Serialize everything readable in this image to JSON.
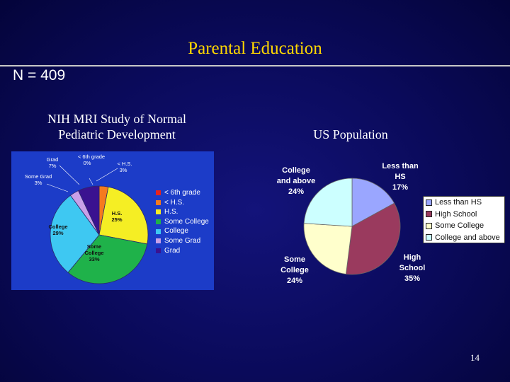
{
  "slide": {
    "title": "Parental Education",
    "n_label": "N = 409",
    "page_number": "14"
  },
  "left_chart": {
    "subtitle_line1": "NIH MRI Study of Normal",
    "subtitle_line2": "Pediatric Development",
    "legend": [
      {
        "label": "< 6th grade",
        "color": "#e8231c"
      },
      {
        "label": "< H.S.",
        "color": "#f57a1f"
      },
      {
        "label": "H.S.",
        "color": "#f5ee24"
      },
      {
        "label": "Some College",
        "color": "#1fb24a"
      },
      {
        "label": "College",
        "color": "#3ec8f2"
      },
      {
        "label": "Some Grad",
        "color": "#c8a0e8"
      },
      {
        "label": "Grad",
        "color": "#3a1290"
      }
    ],
    "slice_labels": {
      "lt6": [
        "< 6th grade",
        "0%"
      ],
      "lths": [
        "< H.S.",
        "3%"
      ],
      "hs": [
        "H.S.",
        "25%"
      ],
      "somecollege": [
        "Some",
        "College",
        "33%"
      ],
      "college": [
        "College",
        "29%"
      ],
      "somegrad": [
        "Some Grad",
        "3%"
      ],
      "grad": [
        "Grad",
        "7%"
      ]
    }
  },
  "right_chart": {
    "subtitle": "US  Population",
    "legend": [
      {
        "label": "Less than HS",
        "color": "#9aa6ff"
      },
      {
        "label": "High School",
        "color": "#9a3a5e"
      },
      {
        "label": "Some College",
        "color": "#ffffcc"
      },
      {
        "label": "College and above",
        "color": "#ccffff"
      }
    ],
    "slice_labels": {
      "lths": [
        "Less than",
        "HS",
        "17%"
      ],
      "hs": [
        "High",
        "School",
        "35%"
      ],
      "somecollege": [
        "Some",
        "College",
        "24%"
      ],
      "college": [
        "College",
        "and above",
        "24%"
      ]
    }
  },
  "chart_data": [
    {
      "type": "pie",
      "title": "NIH MRI Study of Normal Pediatric Development",
      "categories": [
        "< 6th grade",
        "< H.S.",
        "H.S.",
        "Some College",
        "College",
        "Some Grad",
        "Grad"
      ],
      "values": [
        0,
        3,
        25,
        33,
        29,
        3,
        7
      ],
      "colors": [
        "#e8231c",
        "#f57a1f",
        "#f5ee24",
        "#1fb24a",
        "#3ec8f2",
        "#c8a0e8",
        "#3a1290"
      ],
      "legend": "right"
    },
    {
      "type": "pie",
      "title": "US  Population",
      "categories": [
        "Less than HS",
        "High School",
        "Some College",
        "College and above"
      ],
      "values": [
        17,
        35,
        24,
        24
      ],
      "colors": [
        "#9aa6ff",
        "#9a3a5e",
        "#ffffcc",
        "#ccffff"
      ],
      "legend": "right"
    }
  ]
}
